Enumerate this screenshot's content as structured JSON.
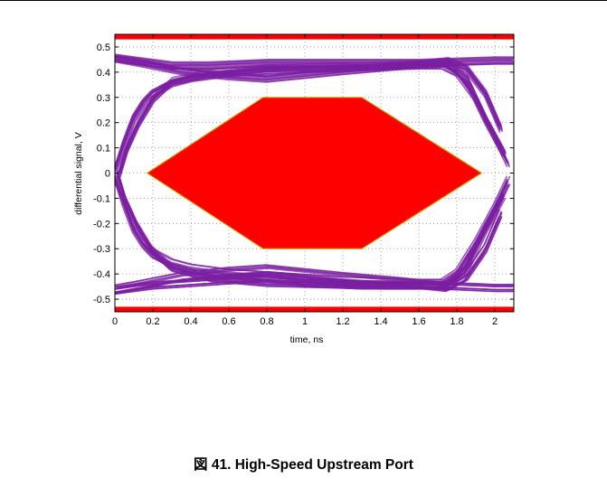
{
  "caption": "図 41. High-Speed Upstream Port",
  "chart_data": {
    "type": "line",
    "subtype": "eye-diagram",
    "title": "",
    "xlabel": "time, ns",
    "ylabel": "differential signal, V",
    "xlim": [
      0,
      2.1
    ],
    "ylim": [
      -0.55,
      0.55
    ],
    "x_ticks": [
      0,
      0.2,
      0.4,
      0.6,
      0.8,
      1,
      1.2,
      1.4,
      1.6,
      1.8,
      2
    ],
    "x_tick_labels": [
      "0",
      "0.2",
      "0.4",
      "0.6",
      "0.8",
      "1",
      "1.2",
      "1.4",
      "1.6",
      "1.8",
      "2"
    ],
    "y_ticks": [
      0.5,
      0.4,
      0.3,
      0.2,
      0.1,
      0,
      -0.1,
      -0.2,
      -0.3,
      -0.4,
      -0.5
    ],
    "y_tick_labels": [
      "0.5",
      "0.4",
      "0.3",
      "0.2",
      "0.1",
      "0",
      "-0.1",
      "-0.2",
      "-0.3",
      "-0.4",
      "-0.5"
    ],
    "grid": true,
    "grid_style": "dotted",
    "mask_limits": {
      "upper_level": 0.53,
      "lower_level": -0.53,
      "color": "#ff0000"
    },
    "eye_mask": {
      "color": "#ff0000",
      "outline_color": "#c8a000",
      "points": [
        [
          0.17,
          0
        ],
        [
          0.78,
          0.3
        ],
        [
          1.3,
          0.3
        ],
        [
          1.93,
          0
        ],
        [
          1.3,
          -0.3
        ],
        [
          0.78,
          -0.3
        ]
      ]
    },
    "trace_color": "#7b1fa2",
    "series": [
      {
        "values": [
          [
            0,
            0.02
          ],
          [
            0.05,
            0.12
          ],
          [
            0.1,
            0.22
          ],
          [
            0.15,
            0.28
          ],
          [
            0.2,
            0.32
          ],
          [
            0.3,
            0.36
          ],
          [
            0.4,
            0.38
          ],
          [
            0.6,
            0.4
          ],
          [
            0.8,
            0.41
          ],
          [
            1.2,
            0.42
          ],
          [
            1.6,
            0.43
          ],
          [
            1.72,
            0.43
          ],
          [
            1.8,
            0.4
          ],
          [
            1.9,
            0.3
          ],
          [
            2.0,
            0.15
          ],
          [
            2.07,
            0.04
          ]
        ]
      },
      {
        "values": [
          [
            0,
            -0.02
          ],
          [
            0.05,
            -0.12
          ],
          [
            0.1,
            -0.22
          ],
          [
            0.15,
            -0.28
          ],
          [
            0.2,
            -0.32
          ],
          [
            0.3,
            -0.36
          ],
          [
            0.4,
            -0.38
          ],
          [
            0.6,
            -0.4
          ],
          [
            0.8,
            -0.41
          ],
          [
            1.2,
            -0.43
          ],
          [
            1.6,
            -0.44
          ],
          [
            1.72,
            -0.44
          ],
          [
            1.8,
            -0.4
          ],
          [
            1.9,
            -0.28
          ],
          [
            2.0,
            -0.14
          ],
          [
            2.07,
            -0.03
          ]
        ]
      },
      {
        "values": [
          [
            0,
            0.46
          ],
          [
            0.1,
            0.45
          ],
          [
            0.2,
            0.44
          ],
          [
            0.3,
            0.43
          ],
          [
            0.5,
            0.43
          ],
          [
            0.8,
            0.44
          ],
          [
            1.2,
            0.44
          ],
          [
            1.6,
            0.44
          ],
          [
            2.0,
            0.45
          ],
          [
            2.1,
            0.45
          ]
        ]
      },
      {
        "values": [
          [
            0,
            -0.47
          ],
          [
            0.1,
            -0.46
          ],
          [
            0.2,
            -0.45
          ],
          [
            0.4,
            -0.44
          ],
          [
            0.6,
            -0.43
          ],
          [
            0.8,
            -0.42
          ],
          [
            1.0,
            -0.44
          ],
          [
            1.3,
            -0.45
          ],
          [
            1.7,
            -0.45
          ],
          [
            2.0,
            -0.46
          ],
          [
            2.1,
            -0.46
          ]
        ]
      },
      {
        "values": [
          [
            0,
            0.46
          ],
          [
            0.15,
            0.44
          ],
          [
            0.35,
            0.41
          ],
          [
            0.6,
            0.39
          ],
          [
            0.8,
            0.38
          ],
          [
            1.2,
            0.41
          ],
          [
            1.5,
            0.43
          ],
          [
            1.75,
            0.45
          ],
          [
            1.85,
            0.42
          ],
          [
            1.95,
            0.32
          ],
          [
            2.03,
            0.18
          ]
        ]
      },
      {
        "values": [
          [
            0,
            -0.46
          ],
          [
            0.15,
            -0.44
          ],
          [
            0.35,
            -0.41
          ],
          [
            0.6,
            -0.39
          ],
          [
            0.8,
            -0.38
          ],
          [
            1.2,
            -0.41
          ],
          [
            1.5,
            -0.43
          ],
          [
            1.75,
            -0.45
          ],
          [
            1.85,
            -0.41
          ],
          [
            1.95,
            -0.3
          ],
          [
            2.03,
            -0.16
          ]
        ]
      },
      {
        "values": [
          [
            0.02,
            0.0
          ],
          [
            0.06,
            -0.1
          ],
          [
            0.12,
            -0.2
          ],
          [
            0.2,
            -0.3
          ],
          [
            0.3,
            -0.37
          ],
          [
            0.5,
            -0.41
          ],
          [
            0.8,
            -0.43
          ],
          [
            1.4,
            -0.44
          ],
          [
            1.75,
            -0.44
          ],
          [
            1.85,
            -0.38
          ],
          [
            1.95,
            -0.22
          ],
          [
            2.05,
            -0.08
          ]
        ]
      },
      {
        "values": [
          [
            0.02,
            0.0
          ],
          [
            0.06,
            0.1
          ],
          [
            0.12,
            0.2
          ],
          [
            0.2,
            0.3
          ],
          [
            0.3,
            0.37
          ],
          [
            0.5,
            0.4
          ],
          [
            0.8,
            0.42
          ],
          [
            1.4,
            0.43
          ],
          [
            1.75,
            0.44
          ],
          [
            1.85,
            0.38
          ],
          [
            1.95,
            0.22
          ],
          [
            2.05,
            0.08
          ]
        ]
      }
    ]
  }
}
